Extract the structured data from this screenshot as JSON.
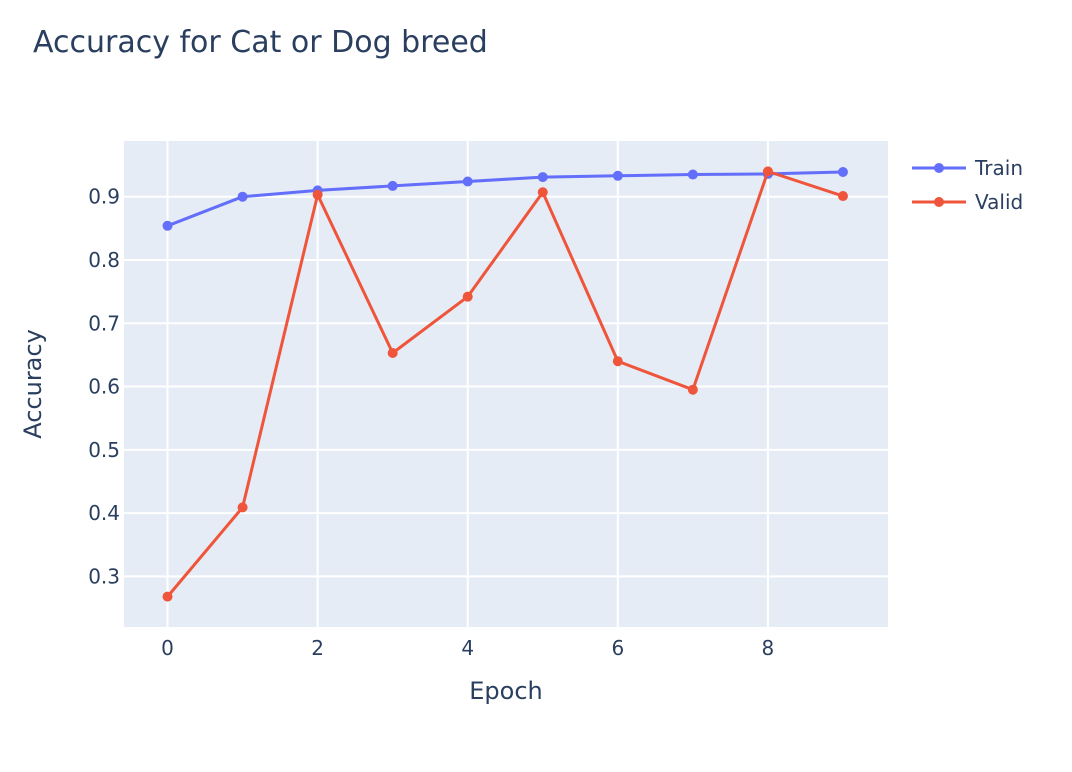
{
  "chart_data": {
    "type": "line",
    "title": "Accuracy for Cat or Dog breed",
    "xlabel": "Epoch",
    "ylabel": "Accuracy",
    "x": [
      0,
      1,
      2,
      3,
      4,
      5,
      6,
      7,
      8,
      9
    ],
    "xlim": [
      -0.58,
      9.6
    ],
    "ylim": [
      0.22,
      0.988
    ],
    "xticks": [
      0,
      2,
      4,
      6,
      8
    ],
    "xtick_labels": [
      "0",
      "2",
      "4",
      "6",
      "8"
    ],
    "yticks": [
      0.3,
      0.4,
      0.5,
      0.6,
      0.7,
      0.8,
      0.9
    ],
    "ytick_labels": [
      "0.3",
      "0.4",
      "0.5",
      "0.6",
      "0.7",
      "0.8",
      "0.9"
    ],
    "grid": true,
    "legend_position": "top-right",
    "plot_background": "#e5ecf6",
    "gridline_color": "#ffffff",
    "series": [
      {
        "name": "Train",
        "color": "#636efa",
        "values": [
          0.854,
          0.9,
          0.91,
          0.917,
          0.924,
          0.931,
          0.933,
          0.935,
          0.936,
          0.939
        ]
      },
      {
        "name": "Valid",
        "color": "#ef553b",
        "values": [
          0.268,
          0.409,
          0.903,
          0.653,
          0.742,
          0.907,
          0.64,
          0.595,
          0.94,
          0.901
        ]
      }
    ]
  }
}
